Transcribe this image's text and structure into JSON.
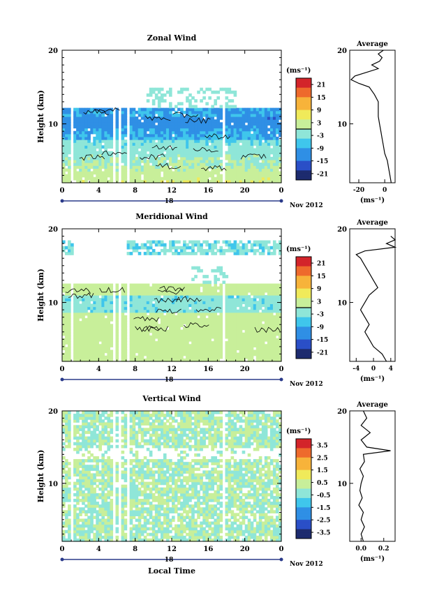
{
  "figure": {
    "xlabel_bottom": "Local Time",
    "date_label": "Nov 2012",
    "day_label": "18",
    "colorbar_unit": "(ms⁻¹)"
  },
  "chart_data": [
    {
      "type": "heatmap",
      "title": "Zonal Wind",
      "ylabel": "Height (km)",
      "x_ticks": [
        "0",
        "4",
        "8",
        "12",
        "16",
        "20",
        "0"
      ],
      "y_ticks": [
        "10",
        "20"
      ],
      "xlim": [
        0,
        24
      ],
      "ylim": [
        2,
        20
      ],
      "colorbar": {
        "ticks": [
          "21",
          "15",
          "9",
          "3",
          "-3",
          "-9",
          "-15",
          "-21"
        ],
        "range": [
          -24,
          24
        ],
        "contour_value": 0
      },
      "profile": {
        "title": "Average",
        "x_ticks": [
          "-20",
          "0"
        ],
        "xlabel": "(ms⁻¹)",
        "y_ticks": [
          "10",
          "20"
        ],
        "xlim": [
          -27,
          8
        ],
        "heights": [
          2,
          3,
          4,
          5,
          6,
          7,
          8,
          9,
          10,
          11,
          12,
          13,
          14,
          15,
          15.5,
          16,
          16.5,
          17,
          17.5,
          18,
          18.5,
          19,
          19.5,
          20
        ],
        "values": [
          5,
          4,
          3,
          2,
          0,
          -1,
          -2,
          -3,
          -4,
          -5,
          -5,
          -5,
          -8,
          -12,
          -20,
          -26,
          -23,
          -14,
          -5,
          -10,
          -4,
          -2,
          -5,
          -1
        ]
      }
    },
    {
      "type": "heatmap",
      "title": "Meridional Wind",
      "ylabel": "Height (km)",
      "x_ticks": [
        "0",
        "4",
        "8",
        "12",
        "16",
        "20",
        "0"
      ],
      "y_ticks": [
        "10",
        "20"
      ],
      "xlim": [
        0,
        24
      ],
      "ylim": [
        2,
        20
      ],
      "colorbar": {
        "ticks": [
          "21",
          "15",
          "9",
          "3",
          "-3",
          "-9",
          "-15",
          "-21"
        ],
        "range": [
          -24,
          24
        ],
        "contour_value": 0
      },
      "profile": {
        "title": "Average",
        "x_ticks": [
          "-4",
          "0",
          "4"
        ],
        "xlabel": "(ms⁻¹)",
        "y_ticks": [
          "10",
          "20"
        ],
        "xlim": [
          -5.5,
          5
        ],
        "heights": [
          2,
          3,
          4,
          5,
          6,
          7,
          8,
          9,
          10,
          11,
          12,
          13,
          14,
          15,
          16,
          16.5,
          17,
          17.5,
          18,
          18.5,
          19
        ],
        "values": [
          3,
          2,
          0,
          -1,
          -2,
          -1,
          -2,
          -3,
          -2,
          -1,
          1,
          0,
          -1,
          -2,
          -3,
          -4,
          -2,
          5,
          3,
          5,
          4
        ]
      }
    },
    {
      "type": "heatmap",
      "title": "Vertical Wind",
      "ylabel": "Height (km)",
      "x_ticks": [
        "0",
        "4",
        "8",
        "12",
        "16",
        "20",
        "0"
      ],
      "y_ticks": [
        "10",
        "20"
      ],
      "xlim": [
        0,
        24
      ],
      "ylim": [
        2,
        20
      ],
      "colorbar": {
        "ticks": [
          "3.5",
          "2.5",
          "1.5",
          "0.5",
          "-0.5",
          "-1.5",
          "-2.5",
          "-3.5"
        ],
        "range": [
          -4,
          4
        ],
        "contour_value": null
      },
      "profile": {
        "title": "Average",
        "x_ticks": [
          "0.0",
          "0.2"
        ],
        "xlabel": "(ms⁻¹)",
        "y_ticks": [
          "10",
          "20"
        ],
        "xlim": [
          -0.1,
          0.3
        ],
        "heights": [
          2,
          3,
          4,
          5,
          6,
          7,
          8,
          9,
          10,
          11,
          12,
          13,
          14,
          14.5,
          15,
          16,
          17,
          18,
          19,
          20
        ],
        "values": [
          0.02,
          0.0,
          0.03,
          0.0,
          0.02,
          -0.02,
          0.01,
          -0.01,
          0.0,
          0.02,
          -0.01,
          0.03,
          0.02,
          0.26,
          0.05,
          0.0,
          0.08,
          0.0,
          0.05,
          0.02
        ]
      }
    }
  ],
  "colors": {
    "scale": [
      "#1d2b6e",
      "#2a4fc7",
      "#2f8fe5",
      "#3fc6ec",
      "#8fe6d8",
      "#c8ef9a",
      "#f0ea5a",
      "#f7b33a",
      "#ee6a2c",
      "#d3242a"
    ],
    "contour": "#000000",
    "axis": "#000000",
    "timeline": "#2a3a8a"
  }
}
